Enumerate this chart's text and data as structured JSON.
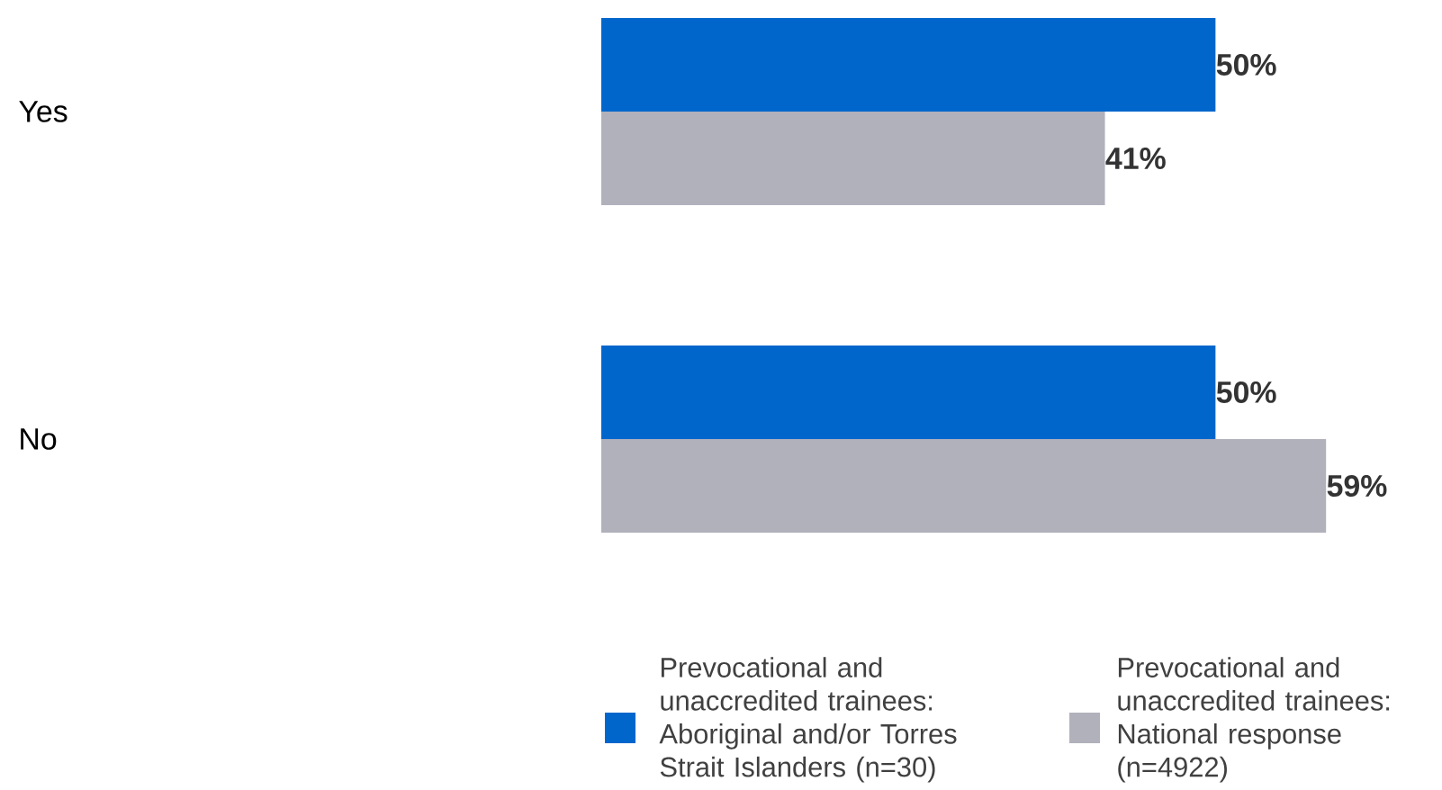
{
  "chart_data": {
    "type": "bar",
    "orientation": "horizontal",
    "categories": [
      "Yes",
      "No"
    ],
    "series": [
      {
        "name": "Prevocational and unaccredited trainees: Aboriginal and/or Torres Strait Islanders (n=30)",
        "color": "#0066cc",
        "values": [
          50,
          50
        ],
        "value_labels": [
          "50%",
          "50%"
        ]
      },
      {
        "name": "Prevocational and unaccredited trainees: National response (n=4922)",
        "color": "#b1b1bc",
        "values": [
          41,
          59
        ],
        "value_labels": [
          "41%",
          "59%"
        ]
      }
    ],
    "legend": "bottom"
  }
}
